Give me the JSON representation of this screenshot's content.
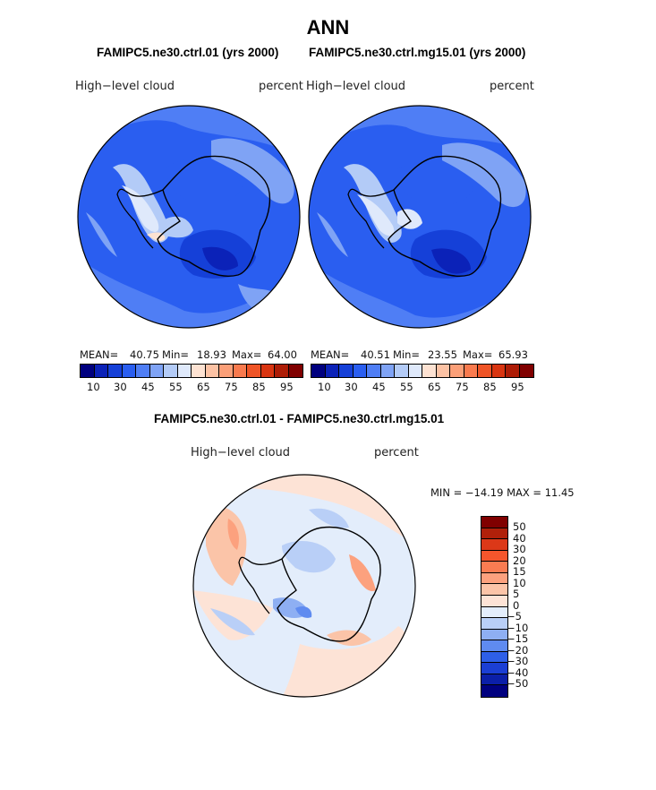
{
  "header": {
    "title": "ANN"
  },
  "panels": [
    {
      "subtitle": "FAMIPC5.ne30.ctrl.01 (yrs 2000)",
      "left_label": "High−level cloud",
      "right_label": "percent",
      "stats": {
        "mean_label": "MEAN=",
        "mean": "40.75",
        "min_label": "Min=",
        "min": "18.93",
        "max_label": "Max=",
        "max": "64.00"
      },
      "tick_labels": [
        "10",
        "30",
        "45",
        "55",
        "65",
        "75",
        "85",
        "95"
      ]
    },
    {
      "subtitle": "FAMIPC5.ne30.ctrl.mg15.01 (yrs 2000)",
      "left_label": "High−level cloud",
      "right_label": "percent",
      "stats": {
        "mean_label": "MEAN=",
        "mean": "40.51",
        "min_label": "Min=",
        "min": "23.55",
        "max_label": "Max=",
        "max": "65.93"
      },
      "tick_labels": [
        "10",
        "30",
        "45",
        "55",
        "65",
        "75",
        "85",
        "95"
      ]
    }
  ],
  "diff": {
    "subtitle": "FAMIPC5.ne30.ctrl.01 - FAMIPC5.ne30.ctrl.mg15.01",
    "left_label": "High−level cloud",
    "right_label": "percent",
    "minmax": "MIN = −14.19 MAX =   11.45",
    "tick_labels": [
      "50",
      "40",
      "30",
      "20",
      "15",
      "10",
      "5",
      "0",
      "−5",
      "−10",
      "−15",
      "−20",
      "−30",
      "−40",
      "−50"
    ]
  },
  "colors": {
    "abs_scale": [
      "#00007f",
      "#0b22b8",
      "#1540d8",
      "#2a5ef0",
      "#4f7ef5",
      "#7fa3f5",
      "#b3cbf7",
      "#dfe9fb",
      "#fde2d2",
      "#fcc2a4",
      "#fb9f78",
      "#f97a4e",
      "#ef5426",
      "#d93511",
      "#ad1c06",
      "#800000"
    ],
    "diff_scale": [
      "#800000",
      "#b0200a",
      "#dc3818",
      "#f5562c",
      "#fa7c52",
      "#fca17e",
      "#fbc4a8",
      "#fde3d6",
      "#e3edfb",
      "#b9cff7",
      "#8eaff3",
      "#5f8bf0",
      "#2e5fe8",
      "#1b3fd4",
      "#0b1fa8",
      "#00007f"
    ]
  }
}
